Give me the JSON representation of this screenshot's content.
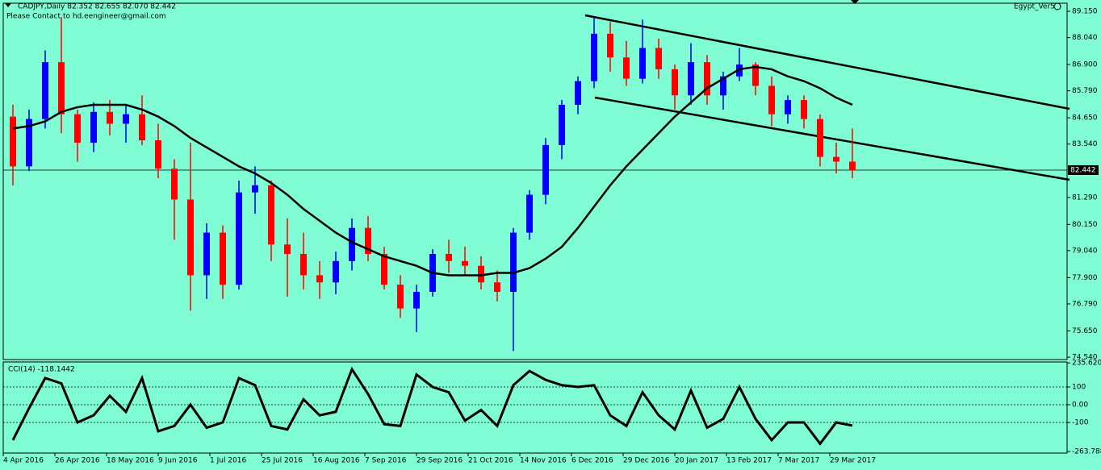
{
  "chart_data": [
    {
      "type": "candlestick",
      "title": "CADJPY,Daily  82.352 82.655 82.070 82.442",
      "subtitle": "Please Contact to hd.eengineer@gmail.com",
      "label": "Egypt_Ver5",
      "up_color": "#0000ff",
      "down_color": "#ff0000",
      "line_color": "#000000",
      "x_labels": [
        "4 Apr 2016",
        "26 Apr 2016",
        "18 May 2016",
        "9 Jun 2016",
        "1 Jul 2016",
        "25 Jul 2016",
        "16 Aug 2016",
        "7 Sep 2016",
        "29 Sep 2016",
        "21 Oct 2016",
        "14 Nov 2016",
        "6 Dec 2016",
        "29 Dec 2016",
        "20 Jan 2017",
        "13 Feb 2017",
        "7 Mar 2017",
        "29 Mar 2017"
      ],
      "open": [
        84.7,
        82.6,
        84.6,
        87.0,
        84.8,
        83.6,
        84.9,
        84.4,
        84.8,
        83.7,
        82.5,
        81.2,
        78.0,
        79.8,
        77.6,
        81.5,
        81.8,
        79.3,
        78.9,
        78.0,
        77.7,
        78.6,
        80.0,
        78.9,
        77.6,
        76.6,
        77.3,
        78.9,
        78.6,
        78.4,
        77.7,
        77.3,
        79.8,
        81.4,
        83.5,
        85.2,
        86.2,
        88.2,
        87.2,
        86.3,
        87.6,
        86.7,
        85.6,
        87.0,
        85.6,
        86.4,
        86.9,
        86.0,
        84.8,
        85.4,
        84.6,
        83.0,
        82.8
      ],
      "high": [
        85.2,
        85.0,
        87.5,
        88.9,
        85.0,
        85.3,
        85.4,
        85.2,
        85.6,
        84.4,
        82.9,
        83.6,
        80.2,
        80.1,
        82.0,
        82.6,
        82.0,
        80.4,
        79.8,
        78.6,
        79.0,
        80.4,
        80.5,
        79.2,
        78.0,
        77.6,
        79.1,
        79.5,
        79.2,
        78.8,
        78.2,
        80.0,
        81.6,
        83.8,
        85.4,
        86.4,
        88.9,
        88.7,
        87.9,
        88.8,
        88.0,
        86.9,
        87.8,
        87.3,
        86.6,
        87.6,
        87.0,
        86.4,
        85.6,
        85.6,
        84.8,
        83.6,
        84.2
      ],
      "low": [
        81.8,
        82.4,
        84.2,
        84.0,
        82.8,
        83.2,
        83.9,
        83.6,
        83.5,
        82.1,
        79.5,
        76.5,
        77.0,
        77.0,
        77.4,
        80.6,
        78.6,
        77.1,
        77.4,
        77.0,
        77.2,
        78.2,
        78.6,
        77.4,
        76.2,
        75.6,
        77.1,
        78.1,
        78.0,
        77.4,
        76.9,
        74.8,
        79.5,
        81.0,
        82.9,
        84.8,
        85.9,
        86.6,
        86.0,
        86.1,
        86.3,
        85.0,
        85.2,
        85.2,
        85.0,
        86.2,
        85.6,
        84.3,
        84.4,
        84.2,
        82.6,
        82.3,
        82.1
      ],
      "close": [
        82.6,
        84.6,
        87.0,
        84.8,
        83.6,
        84.9,
        84.4,
        84.8,
        83.7,
        82.5,
        81.2,
        78.0,
        79.8,
        77.6,
        81.5,
        81.8,
        79.3,
        78.9,
        78.0,
        77.7,
        78.6,
        80.0,
        78.9,
        77.6,
        76.6,
        77.3,
        78.9,
        78.6,
        78.4,
        77.7,
        77.3,
        79.8,
        81.4,
        83.5,
        85.2,
        86.2,
        88.2,
        87.2,
        86.3,
        87.6,
        86.7,
        85.6,
        87.0,
        85.6,
        86.4,
        86.9,
        86.0,
        84.8,
        85.4,
        84.6,
        83.0,
        82.8,
        82.442
      ],
      "ma": [
        84.2,
        84.3,
        84.5,
        84.9,
        85.1,
        85.2,
        85.2,
        85.2,
        85.0,
        84.7,
        84.3,
        83.8,
        83.4,
        83.0,
        82.6,
        82.3,
        81.9,
        81.4,
        80.8,
        80.3,
        79.8,
        79.4,
        79.1,
        78.8,
        78.6,
        78.4,
        78.1,
        78.0,
        78.0,
        78.0,
        78.1,
        78.1,
        78.3,
        78.7,
        79.2,
        80.0,
        80.9,
        81.8,
        82.6,
        83.3,
        84.0,
        84.7,
        85.3,
        85.9,
        86.3,
        86.7,
        86.8,
        86.7,
        86.4,
        86.2,
        85.9,
        85.5,
        85.2
      ],
      "last_price": {
        "value": 82.442,
        "label": "82.442"
      },
      "ylim": [
        74.44,
        89.49
      ],
      "yticks": [
        {
          "value": 89.15,
          "label": "89.150"
        },
        {
          "value": 88.04,
          "label": "88.040"
        },
        {
          "value": 86.9,
          "label": "86.900"
        },
        {
          "value": 85.79,
          "label": "85.790"
        },
        {
          "value": 84.65,
          "label": "84.650"
        },
        {
          "value": 83.54,
          "label": "83.540"
        },
        {
          "value": 81.29,
          "label": "81.290"
        },
        {
          "value": 80.15,
          "label": "80.150"
        },
        {
          "value": 79.04,
          "label": "79.040"
        },
        {
          "value": 77.9,
          "label": "77.900"
        },
        {
          "value": 76.79,
          "label": "76.790"
        },
        {
          "value": 75.65,
          "label": "75.650"
        },
        {
          "value": 74.54,
          "label": "74.540"
        }
      ]
    },
    {
      "type": "line",
      "title": "CCI(14) -118.1442",
      "color": "#000000",
      "values": [
        -200,
        -20,
        150,
        120,
        -100,
        -60,
        50,
        -40,
        150,
        -150,
        -120,
        0,
        -130,
        -100,
        150,
        110,
        -120,
        -140,
        30,
        -60,
        -40,
        200,
        60,
        -110,
        -120,
        170,
        100,
        70,
        -90,
        -30,
        -120,
        110,
        190,
        140,
        110,
        100,
        110,
        -60,
        -120,
        70,
        -60,
        -140,
        80,
        -130,
        -80,
        100,
        -80,
        -200,
        -100,
        -100,
        -220,
        -100,
        -118.1442
      ],
      "ylim": [
        -273,
        241
      ],
      "yticks": [
        {
          "value": 235.6209,
          "label": "235.6209"
        },
        100,
        {
          "value": 0,
          "label": "0.00"
        },
        -100,
        {
          "value": -263.788,
          "label": "-263.788"
        }
      ]
    }
  ]
}
